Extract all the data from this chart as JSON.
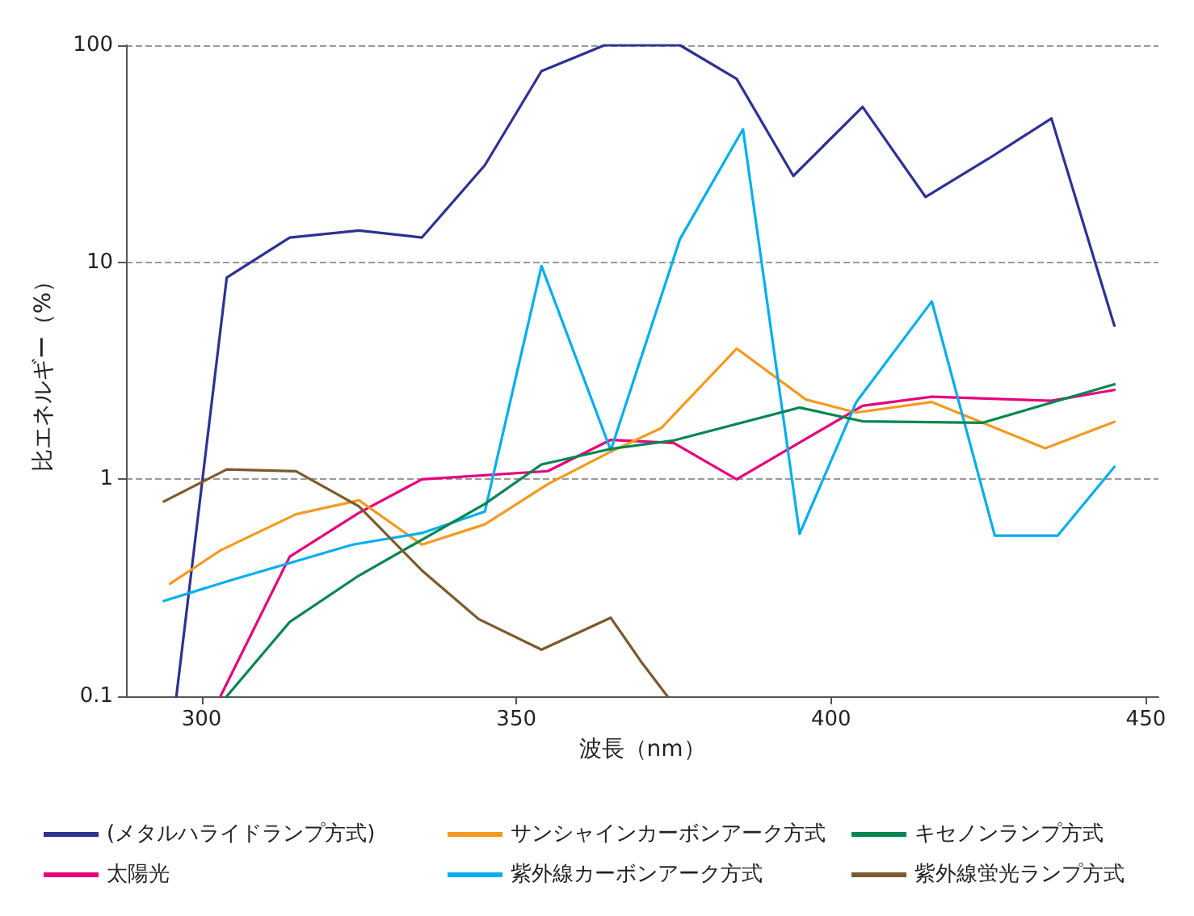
{
  "chart_data": {
    "type": "line",
    "xlabel": "波長（nm）",
    "ylabel": "比エネルギー（%）",
    "log": "y",
    "xlim": [
      288,
      452
    ],
    "xticks": [
      300,
      350,
      400,
      450
    ],
    "ylim": [
      0.1,
      100
    ],
    "yticks": [
      0.1,
      1,
      10,
      100
    ],
    "grid": "y",
    "legend": "bottom",
    "marker": "none",
    "line_style": "solid",
    "series": [
      {
        "name": "(メタルハライドランプ方式)",
        "color": "#2e3192",
        "x": [
          296,
          304,
          314,
          325,
          335,
          345,
          354,
          364,
          376,
          385,
          394,
          405,
          415,
          425,
          435,
          445
        ],
        "values": [
          0.1,
          8.5,
          13,
          14,
          13,
          28,
          76,
          100,
          100,
          70,
          25,
          52,
          20,
          30,
          46,
          5.1
        ]
      },
      {
        "name": "太陽光",
        "color": "#e6007e",
        "x": [
          303,
          314,
          325,
          335,
          355,
          365,
          375,
          385,
          405,
          416,
          435,
          445
        ],
        "values": [
          0.1,
          0.44,
          0.7,
          1.0,
          1.09,
          1.52,
          1.47,
          1.0,
          2.18,
          2.4,
          2.3,
          2.58
        ]
      },
      {
        "name": "サンシャインカーボンアーク方式",
        "color": "#f39a1f",
        "x": [
          295,
          303,
          315,
          325,
          335,
          345,
          355,
          365,
          373,
          385,
          396,
          404,
          416,
          434,
          445
        ],
        "values": [
          0.33,
          0.47,
          0.69,
          0.8,
          0.5,
          0.62,
          0.95,
          1.34,
          1.72,
          4.0,
          2.33,
          2.03,
          2.27,
          1.39,
          1.84
        ]
      },
      {
        "name": "紫外線カーボンアーク方式",
        "color": "#00aeef",
        "x": [
          294,
          305,
          324,
          335,
          345,
          354,
          365,
          376,
          386,
          395,
          404,
          416,
          426,
          436,
          445
        ],
        "values": [
          0.275,
          0.345,
          0.5,
          0.565,
          0.71,
          9.6,
          1.36,
          12.8,
          41,
          0.56,
          2.27,
          6.6,
          0.55,
          0.55,
          1.14
        ]
      },
      {
        "name": "キセノンランプ方式",
        "color": "#00864f",
        "x": [
          304,
          314,
          325,
          345,
          354,
          365,
          375,
          395,
          405,
          424,
          445
        ],
        "values": [
          0.1,
          0.22,
          0.36,
          0.77,
          1.17,
          1.38,
          1.51,
          2.14,
          1.85,
          1.82,
          2.74
        ]
      },
      {
        "name": "紫外線蛍光ランプ方式",
        "color": "#7b5a2d",
        "x": [
          294,
          304,
          315,
          325,
          335,
          344,
          354,
          365,
          370,
          374
        ],
        "values": [
          0.79,
          1.11,
          1.09,
          0.75,
          0.38,
          0.227,
          0.164,
          0.23,
          0.142,
          0.1
        ]
      }
    ]
  }
}
